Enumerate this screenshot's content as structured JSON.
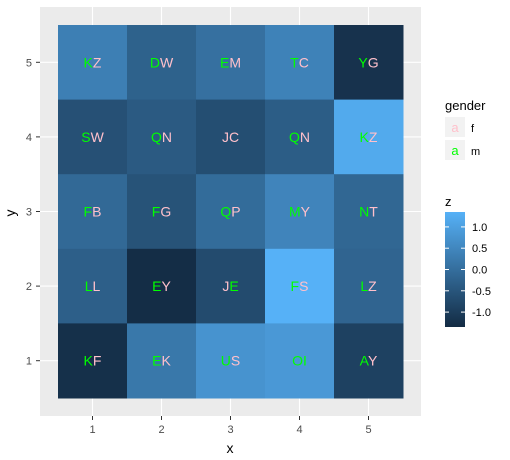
{
  "chart_data": {
    "type": "heatmap",
    "xlabel": "x",
    "ylabel": "y",
    "x_ticks": [
      "1",
      "2",
      "3",
      "4",
      "5"
    ],
    "y_ticks": [
      "1",
      "2",
      "3",
      "4",
      "5"
    ],
    "xlim": [
      0.5,
      5.5
    ],
    "ylim": [
      0.5,
      5.5
    ],
    "grid": true,
    "legend_position": "right",
    "fill_legend": {
      "title": "z",
      "breaks": [
        1.0,
        0.5,
        0.0,
        -0.5,
        -1.0
      ],
      "break_labels": [
        "1.0",
        "0.5",
        "0.0",
        "-0.5",
        "-1.0"
      ],
      "range": [
        -1.35,
        1.35
      ],
      "low_color": "#132B43",
      "high_color": "#56B1F7"
    },
    "gender_legend": {
      "title": "gender",
      "entries": [
        {
          "label": "f",
          "key": "a",
          "color": "#FFC0CB"
        },
        {
          "label": "m",
          "key": "a",
          "color": "#00FF00"
        }
      ]
    },
    "cells": [
      {
        "x": 1,
        "y": 5,
        "z": 0.35,
        "label": "KZ",
        "first_color": "#00FF00",
        "second_color": "#FFC0CB"
      },
      {
        "x": 2,
        "y": 5,
        "z": -0.25,
        "label": "DW",
        "first_color": "#00FF00",
        "second_color": "#FFC0CB"
      },
      {
        "x": 3,
        "y": 5,
        "z": 0.05,
        "label": "EM",
        "first_color": "#00FF00",
        "second_color": "#FFC0CB"
      },
      {
        "x": 4,
        "y": 5,
        "z": 0.4,
        "label": "TC",
        "first_color": "#00FF00",
        "second_color": "#FFC0CB"
      },
      {
        "x": 5,
        "y": 5,
        "z": -1.2,
        "label": "YG",
        "first_color": "#00FF00",
        "second_color": "#FFC0CB"
      },
      {
        "x": 1,
        "y": 4,
        "z": -0.6,
        "label": "SW",
        "first_color": "#00FF00",
        "second_color": "#FFC0CB"
      },
      {
        "x": 2,
        "y": 4,
        "z": -0.4,
        "label": "QN",
        "first_color": "#00FF00",
        "second_color": "#FFC0CB"
      },
      {
        "x": 3,
        "y": 4,
        "z": -0.65,
        "label": "JC",
        "first_color": "#FFC0CB",
        "second_color": "#FFC0CB"
      },
      {
        "x": 4,
        "y": 4,
        "z": -0.35,
        "label": "QN",
        "first_color": "#00FF00",
        "second_color": "#FFC0CB"
      },
      {
        "x": 5,
        "y": 4,
        "z": 1.2,
        "label": "KZ",
        "first_color": "#00FF00",
        "second_color": "#FFC0CB"
      },
      {
        "x": 1,
        "y": 3,
        "z": -0.1,
        "label": "FB",
        "first_color": "#00FF00",
        "second_color": "#FFC0CB"
      },
      {
        "x": 2,
        "y": 3,
        "z": -0.55,
        "label": "FG",
        "first_color": "#00FF00",
        "second_color": "#FFC0CB"
      },
      {
        "x": 3,
        "y": 3,
        "z": -0.05,
        "label": "QP",
        "first_color": "#00FF00",
        "second_color": "#FFC0CB"
      },
      {
        "x": 4,
        "y": 3,
        "z": 0.45,
        "label": "MY",
        "first_color": "#00FF00",
        "second_color": "#FFC0CB"
      },
      {
        "x": 5,
        "y": 3,
        "z": -0.15,
        "label": "NT",
        "first_color": "#00FF00",
        "second_color": "#FFC0CB"
      },
      {
        "x": 1,
        "y": 2,
        "z": -0.3,
        "label": "LL",
        "first_color": "#00FF00",
        "second_color": "#FFC0CB"
      },
      {
        "x": 2,
        "y": 2,
        "z": -1.3,
        "label": "EY",
        "first_color": "#00FF00",
        "second_color": "#FFC0CB"
      },
      {
        "x": 3,
        "y": 2,
        "z": -0.7,
        "label": "JE",
        "first_color": "#FFC0CB",
        "second_color": "#00FF00"
      },
      {
        "x": 4,
        "y": 2,
        "z": 1.35,
        "label": "FS",
        "first_color": "#00FF00",
        "second_color": "#FFC0CB"
      },
      {
        "x": 5,
        "y": 2,
        "z": -0.2,
        "label": "LZ",
        "first_color": "#00FF00",
        "second_color": "#FFC0CB"
      },
      {
        "x": 1,
        "y": 1,
        "z": -1.25,
        "label": "KF",
        "first_color": "#00FF00",
        "second_color": "#FFC0CB"
      },
      {
        "x": 2,
        "y": 1,
        "z": 0.2,
        "label": "EK",
        "first_color": "#00FF00",
        "second_color": "#FFC0CB"
      },
      {
        "x": 3,
        "y": 1,
        "z": 0.75,
        "label": "US",
        "first_color": "#00FF00",
        "second_color": "#FFC0CB"
      },
      {
        "x": 4,
        "y": 1,
        "z": 0.85,
        "label": "OI",
        "first_color": "#00FF00",
        "second_color": "#00FF00"
      },
      {
        "x": 5,
        "y": 1,
        "z": -0.9,
        "label": "AY",
        "first_color": "#00FF00",
        "second_color": "#FFC0CB"
      }
    ]
  }
}
